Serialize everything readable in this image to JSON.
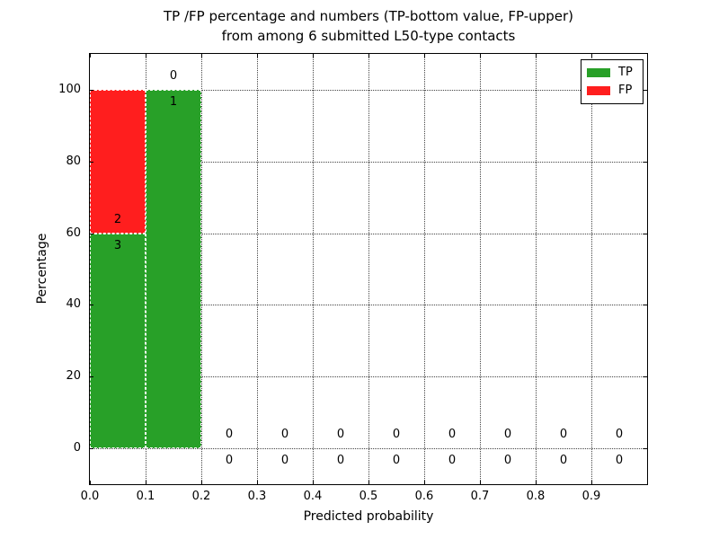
{
  "figure": {
    "title_line1": "TP /FP percentage and numbers (TP-bottom value, FP-upper)",
    "title_line2": "from among 6 submitted L50-type contacts"
  },
  "chart_data": {
    "type": "bar",
    "stacked": true,
    "title": "TP /FP percentage and numbers (TP-bottom value, FP-upper) from among 6 submitted L50-type contacts",
    "xlabel": "Predicted probability",
    "ylabel": "Percentage",
    "xlim": [
      0.0,
      1.0
    ],
    "ylim": [
      -10,
      110
    ],
    "grid": true,
    "legend_position": "upper right",
    "total_contacts": 6,
    "series": [
      {
        "name": "TP",
        "color": "#28a028"
      },
      {
        "name": "FP",
        "color": "#ff1e1e"
      }
    ],
    "xticks": [
      {
        "v": 0.0,
        "label": "0.0"
      },
      {
        "v": 0.1,
        "label": "0.1"
      },
      {
        "v": 0.2,
        "label": "0.2"
      },
      {
        "v": 0.3,
        "label": "0.3"
      },
      {
        "v": 0.4,
        "label": "0.4"
      },
      {
        "v": 0.5,
        "label": "0.5"
      },
      {
        "v": 0.6,
        "label": "0.6"
      },
      {
        "v": 0.7,
        "label": "0.7"
      },
      {
        "v": 0.8,
        "label": "0.8"
      },
      {
        "v": 0.9,
        "label": "0.9"
      }
    ],
    "yticks": [
      {
        "v": 0,
        "label": "0"
      },
      {
        "v": 20,
        "label": "20"
      },
      {
        "v": 40,
        "label": "40"
      },
      {
        "v": 60,
        "label": "60"
      },
      {
        "v": 80,
        "label": "80"
      },
      {
        "v": 100,
        "label": "100"
      }
    ],
    "bins": [
      {
        "x_start": 0.0,
        "x_end": 0.1,
        "tp_pct": 60,
        "fp_pct": 40,
        "tp_count": 3,
        "fp_count": 2
      },
      {
        "x_start": 0.1,
        "x_end": 0.2,
        "tp_pct": 100,
        "fp_pct": 0,
        "tp_count": 1,
        "fp_count": 0
      },
      {
        "x_start": 0.2,
        "x_end": 0.3,
        "tp_pct": 0,
        "fp_pct": 0,
        "tp_count": 0,
        "fp_count": 0
      },
      {
        "x_start": 0.3,
        "x_end": 0.4,
        "tp_pct": 0,
        "fp_pct": 0,
        "tp_count": 0,
        "fp_count": 0
      },
      {
        "x_start": 0.4,
        "x_end": 0.5,
        "tp_pct": 0,
        "fp_pct": 0,
        "tp_count": 0,
        "fp_count": 0
      },
      {
        "x_start": 0.5,
        "x_end": 0.6,
        "tp_pct": 0,
        "fp_pct": 0,
        "tp_count": 0,
        "fp_count": 0
      },
      {
        "x_start": 0.6,
        "x_end": 0.7,
        "tp_pct": 0,
        "fp_pct": 0,
        "tp_count": 0,
        "fp_count": 0
      },
      {
        "x_start": 0.7,
        "x_end": 0.8,
        "tp_pct": 0,
        "fp_pct": 0,
        "tp_count": 0,
        "fp_count": 0
      },
      {
        "x_start": 0.8,
        "x_end": 0.9,
        "tp_pct": 0,
        "fp_pct": 0,
        "tp_count": 0,
        "fp_count": 0
      },
      {
        "x_start": 0.9,
        "x_end": 1.0,
        "tp_pct": 0,
        "fp_pct": 0,
        "tp_count": 0,
        "fp_count": 0
      }
    ]
  }
}
